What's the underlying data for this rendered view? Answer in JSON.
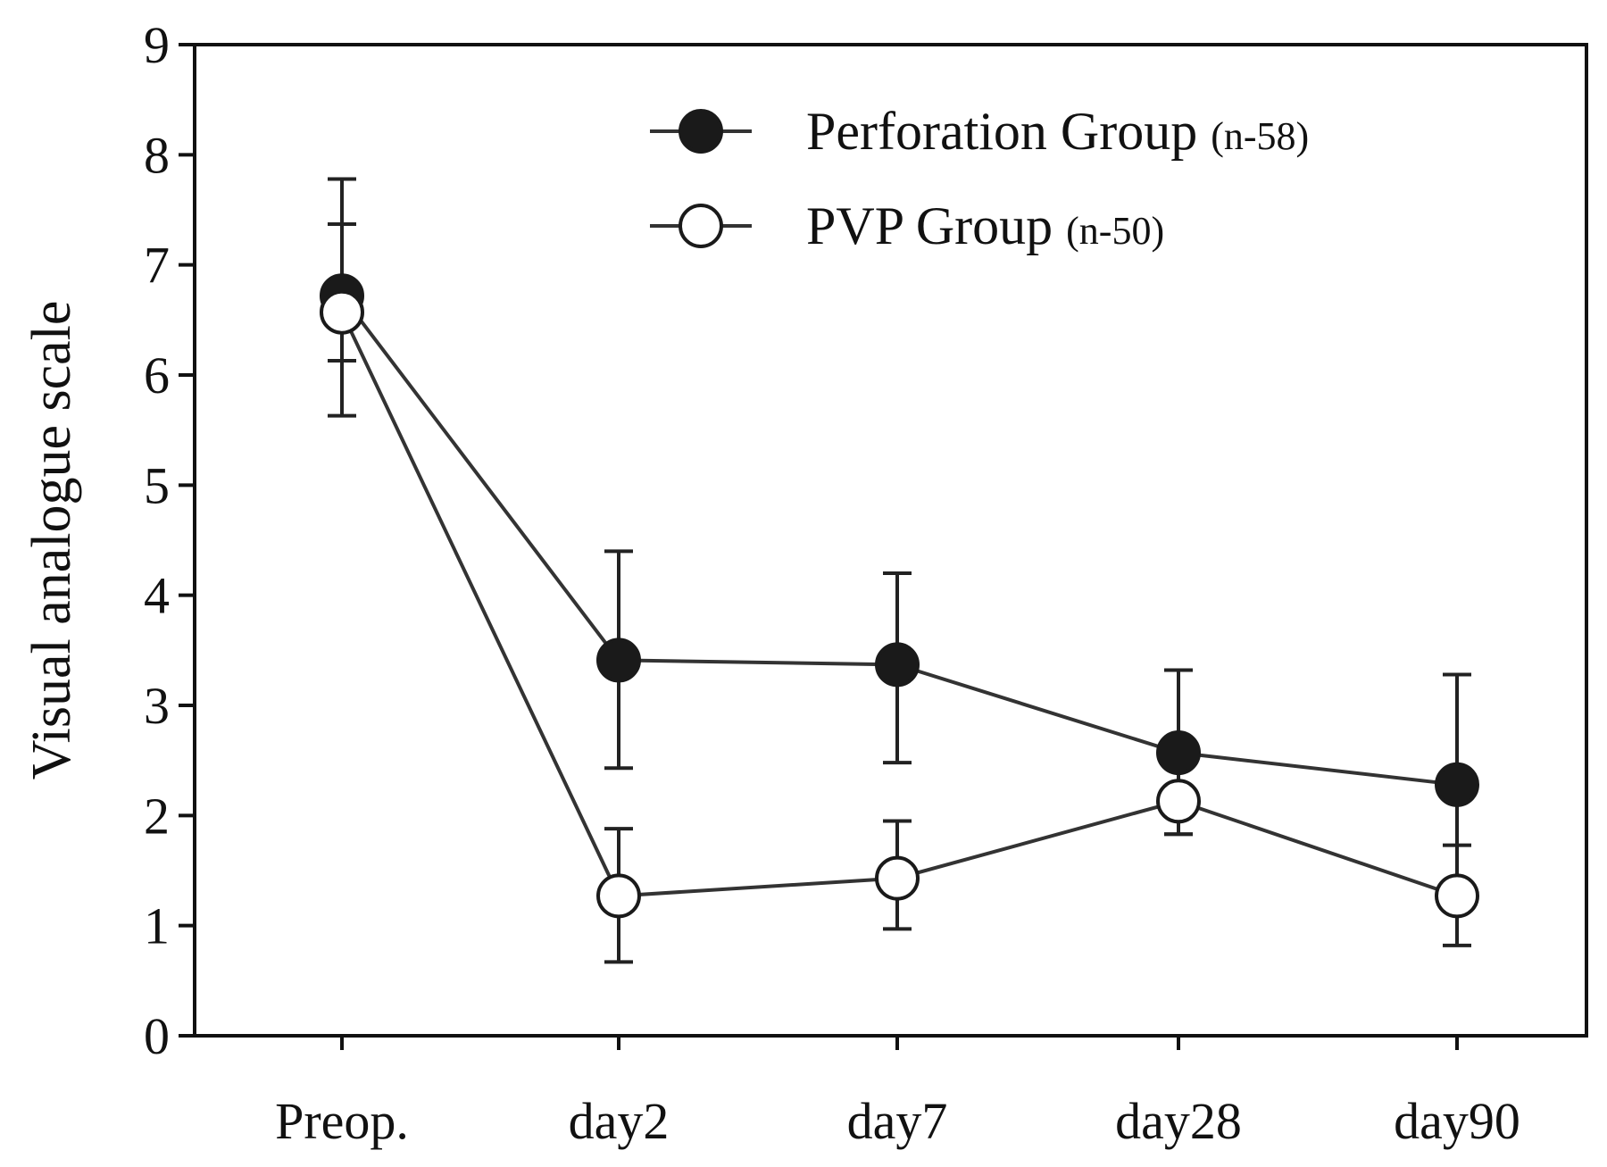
{
  "chart_data": {
    "type": "line",
    "title": "",
    "xlabel": "",
    "ylabel": "Visual analogue scale",
    "categories": [
      "Preop.",
      "day2",
      "day7",
      "day28",
      "day90"
    ],
    "ylim": [
      0,
      9
    ],
    "yticks": [
      "0",
      "1",
      "2",
      "3",
      "4",
      "5",
      "6",
      "7",
      "8",
      "9"
    ],
    "grid": false,
    "legend_position": "top-right",
    "series": [
      {
        "name": "Perforation Group",
        "n_label": "(n-58)",
        "marker": "filled-circle",
        "color": "#1a1a1a",
        "values": [
          6.72,
          3.41,
          3.37,
          2.57,
          2.28
        ],
        "err_high": [
          7.78,
          4.4,
          4.2,
          3.32,
          3.28
        ],
        "err_low": [
          5.63,
          2.43,
          2.48,
          1.83,
          1.27
        ]
      },
      {
        "name": "PVP Group",
        "n_label": "(n-50)",
        "marker": "open-circle",
        "color": "#ffffff",
        "values": [
          6.57,
          1.27,
          1.43,
          2.13,
          1.27
        ],
        "err_high": [
          7.37,
          1.88,
          1.95,
          2.13,
          1.73
        ],
        "err_low": [
          6.13,
          0.67,
          0.97,
          1.83,
          0.82
        ]
      }
    ]
  }
}
